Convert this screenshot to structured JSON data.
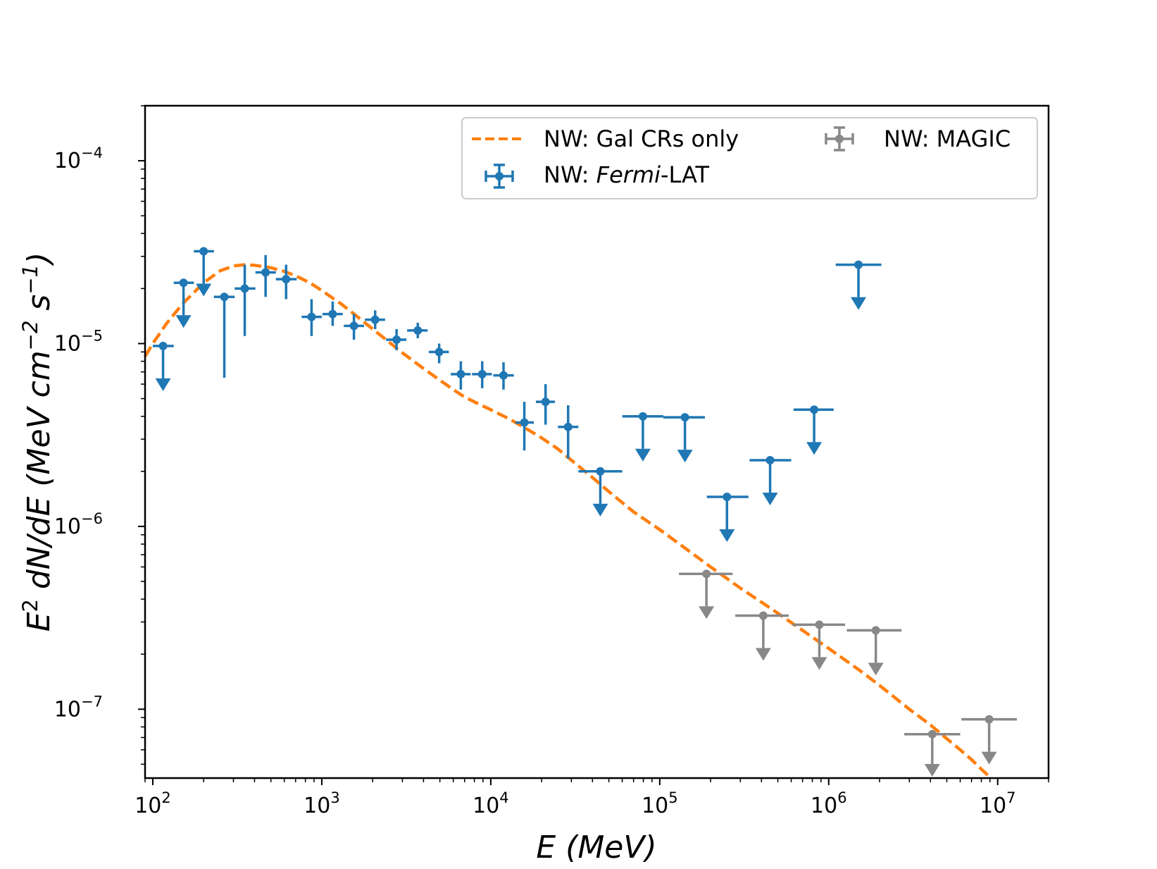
{
  "chart_data": {
    "type": "scatter",
    "xscale": "log",
    "yscale": "log",
    "xlim": [
      90,
      20000000
    ],
    "ylim": [
      4.2e-08,
      0.0002
    ],
    "xlabel": "E (MeV)",
    "ylabel_base": "E",
    "ylabel_sup": "2",
    "ylabel_mid": " dN/dE (MeV cm",
    "ylabel_sup2": "−2",
    "ylabel_mid2": " s",
    "ylabel_sup3": "−1",
    "ylabel_end": ")",
    "xtick_labels": [
      {
        "base": "10",
        "exp": "2",
        "value": 100
      },
      {
        "base": "10",
        "exp": "3",
        "value": 1000
      },
      {
        "base": "10",
        "exp": "4",
        "value": 10000
      },
      {
        "base": "10",
        "exp": "5",
        "value": 100000
      },
      {
        "base": "10",
        "exp": "6",
        "value": 1000000
      },
      {
        "base": "10",
        "exp": "7",
        "value": 10000000
      }
    ],
    "ytick_labels": [
      {
        "base": "10",
        "exp": "−7",
        "value": 1e-07
      },
      {
        "base": "10",
        "exp": "−6",
        "value": 1e-06
      },
      {
        "base": "10",
        "exp": "−5",
        "value": 1e-05
      },
      {
        "base": "10",
        "exp": "−4",
        "value": 0.0001
      }
    ],
    "legend": {
      "position": "upper-right",
      "columns": 2,
      "entries": [
        {
          "series": "model",
          "label": "NW: Gal CRs only"
        },
        {
          "series": "fermi",
          "label_pre": "NW: ",
          "label_italic": "Fermi",
          "label_post": "-LAT"
        },
        {
          "series": "magic",
          "label": "NW: MAGIC"
        }
      ]
    },
    "series": [
      {
        "key": "model",
        "name": "NW: Gal CRs only",
        "style": "dashed-line",
        "color": "#ff7f0e",
        "points": [
          [
            90,
            8.5e-06
          ],
          [
            100,
            1e-05
          ],
          [
            120,
            1.28e-05
          ],
          [
            150,
            1.65e-05
          ],
          [
            200,
            2.15e-05
          ],
          [
            250,
            2.5e-05
          ],
          [
            300,
            2.66e-05
          ],
          [
            350,
            2.7e-05
          ],
          [
            400,
            2.68e-05
          ],
          [
            500,
            2.6e-05
          ],
          [
            600,
            2.48e-05
          ],
          [
            700,
            2.35e-05
          ],
          [
            850,
            2.15e-05
          ],
          [
            1000,
            1.95e-05
          ],
          [
            1300,
            1.65e-05
          ],
          [
            1600,
            1.42e-05
          ],
          [
            2000,
            1.2e-05
          ],
          [
            2500,
            1.02e-05
          ],
          [
            3000,
            8.9e-06
          ],
          [
            4000,
            7.3e-06
          ],
          [
            5000,
            6.3e-06
          ],
          [
            6000,
            5.6e-06
          ],
          [
            7000,
            5.1e-06
          ],
          [
            8000,
            4.8e-06
          ],
          [
            10000,
            4.35e-06
          ],
          [
            13000,
            3.85e-06
          ],
          [
            16000,
            3.45e-06
          ],
          [
            20000,
            3.05e-06
          ],
          [
            25000,
            2.65e-06
          ],
          [
            30000,
            2.3e-06
          ],
          [
            40000,
            1.85e-06
          ],
          [
            50000,
            1.55e-06
          ],
          [
            70000,
            1.2e-06
          ],
          [
            100000,
            9.6e-07
          ],
          [
            150000,
            7.3e-07
          ],
          [
            200000,
            6e-07
          ],
          [
            300000,
            4.6e-07
          ],
          [
            400000,
            3.85e-07
          ],
          [
            500000,
            3.35e-07
          ],
          [
            700000,
            2.7e-07
          ],
          [
            1000000,
            2.15e-07
          ],
          [
            1500000,
            1.65e-07
          ],
          [
            2000000,
            1.35e-07
          ],
          [
            3000000,
            1e-07
          ],
          [
            4000000,
            8.2e-08
          ],
          [
            5000000,
            6.9e-08
          ],
          [
            6000000,
            6e-08
          ],
          [
            7000000,
            5.3e-08
          ],
          [
            8000000,
            4.7e-08
          ],
          [
            9000000,
            4.25e-08
          ]
        ]
      },
      {
        "key": "fermi",
        "name": "NW: Fermi-LAT",
        "style": "errorbar",
        "color": "#1f77b4",
        "points": [
          {
            "x": 115,
            "y": 9.7e-06,
            "xlo": 100,
            "xhi": 133,
            "ul": true
          },
          {
            "x": 152,
            "y": 2.15e-05,
            "xlo": 133,
            "xhi": 175,
            "ul": true
          },
          {
            "x": 200,
            "y": 3.2e-05,
            "xlo": 175,
            "xhi": 230,
            "ul": true
          },
          {
            "x": 265,
            "y": 1.8e-05,
            "xlo": 230,
            "xhi": 305,
            "ylo": 6.5e-06,
            "yhi": 1.8e-05
          },
          {
            "x": 350,
            "y": 2e-05,
            "xlo": 305,
            "xhi": 405,
            "ylo": 1.1e-05,
            "yhi": 2.7e-05
          },
          {
            "x": 465,
            "y": 2.45e-05,
            "xlo": 405,
            "xhi": 535,
            "ylo": 1.8e-05,
            "yhi": 3.05e-05
          },
          {
            "x": 615,
            "y": 2.25e-05,
            "xlo": 535,
            "xhi": 710,
            "ylo": 1.75e-05,
            "yhi": 2.7e-05
          },
          {
            "x": 870,
            "y": 1.4e-05,
            "xlo": 760,
            "xhi": 1000,
            "ylo": 1.1e-05,
            "yhi": 1.75e-05
          },
          {
            "x": 1160,
            "y": 1.45e-05,
            "xlo": 1010,
            "xhi": 1330,
            "ylo": 1.25e-05,
            "yhi": 1.7e-05
          },
          {
            "x": 1550,
            "y": 1.25e-05,
            "xlo": 1350,
            "xhi": 1780,
            "ylo": 1.05e-05,
            "yhi": 1.45e-05
          },
          {
            "x": 2070,
            "y": 1.35e-05,
            "xlo": 1800,
            "xhi": 2370,
            "ylo": 1.2e-05,
            "yhi": 1.52e-05
          },
          {
            "x": 2770,
            "y": 1.05e-05,
            "xlo": 2400,
            "xhi": 3170,
            "ylo": 9.2e-06,
            "yhi": 1.2e-05
          },
          {
            "x": 3700,
            "y": 1.18e-05,
            "xlo": 3200,
            "xhi": 4230,
            "ylo": 1.07e-05,
            "yhi": 1.3e-05
          },
          {
            "x": 4950,
            "y": 9e-06,
            "xlo": 4300,
            "xhi": 5650,
            "ylo": 7.8e-06,
            "yhi": 1e-05
          },
          {
            "x": 6650,
            "y": 6.8e-06,
            "xlo": 5800,
            "xhi": 7600,
            "ylo": 5.6e-06,
            "yhi": 8e-06
          },
          {
            "x": 8900,
            "y": 6.8e-06,
            "xlo": 7750,
            "xhi": 10150,
            "ylo": 5.7e-06,
            "yhi": 8e-06
          },
          {
            "x": 11900,
            "y": 6.7e-06,
            "xlo": 10350,
            "xhi": 13700,
            "ylo": 5.6e-06,
            "yhi": 7.9e-06
          },
          {
            "x": 15800,
            "y": 3.7e-06,
            "xlo": 14000,
            "xhi": 18000,
            "ylo": 2.6e-06,
            "yhi": 4.8e-06
          },
          {
            "x": 21100,
            "y": 4.8e-06,
            "xlo": 18500,
            "xhi": 24000,
            "ylo": 3.6e-06,
            "yhi": 6e-06
          },
          {
            "x": 28700,
            "y": 3.5e-06,
            "xlo": 25000,
            "xhi": 33000,
            "ylo": 2.35e-06,
            "yhi": 4.6e-06
          },
          {
            "x": 44500,
            "y": 2e-06,
            "xlo": 33000,
            "xhi": 60000,
            "ul": true
          },
          {
            "x": 79500,
            "y": 4e-06,
            "xlo": 60000,
            "xhi": 105000,
            "ul": true
          },
          {
            "x": 141000,
            "y": 3.95e-06,
            "xlo": 105000,
            "xhi": 185000,
            "ul": true
          },
          {
            "x": 250000,
            "y": 1.45e-06,
            "xlo": 190000,
            "xhi": 335000,
            "ul": true
          },
          {
            "x": 450000,
            "y": 2.3e-06,
            "xlo": 340000,
            "xhi": 600000,
            "ul": true
          },
          {
            "x": 820000,
            "y": 4.35e-06,
            "xlo": 620000,
            "xhi": 1070000,
            "ul": true
          },
          {
            "x": 1500000,
            "y": 2.7e-05,
            "xlo": 1100000,
            "xhi": 2050000,
            "ul": true
          }
        ]
      },
      {
        "key": "magic",
        "name": "NW: MAGIC",
        "style": "errorbar",
        "color": "#888888",
        "points": [
          {
            "x": 189000,
            "y": 5.5e-07,
            "xlo": 130000,
            "xhi": 270000,
            "ul": true
          },
          {
            "x": 410000,
            "y": 3.25e-07,
            "xlo": 280000,
            "xhi": 580000,
            "ul": true
          },
          {
            "x": 880000,
            "y": 2.9e-07,
            "xlo": 610000,
            "xhi": 1250000,
            "ul": true
          },
          {
            "x": 1900000,
            "y": 2.7e-07,
            "xlo": 1280000,
            "xhi": 2700000,
            "ul": true
          },
          {
            "x": 4100000,
            "y": 7.3e-08,
            "xlo": 2800000,
            "xhi": 6000000,
            "ul": true
          },
          {
            "x": 8900000,
            "y": 8.8e-08,
            "xlo": 6100000,
            "xhi": 13000000,
            "ul": true
          }
        ]
      }
    ]
  }
}
